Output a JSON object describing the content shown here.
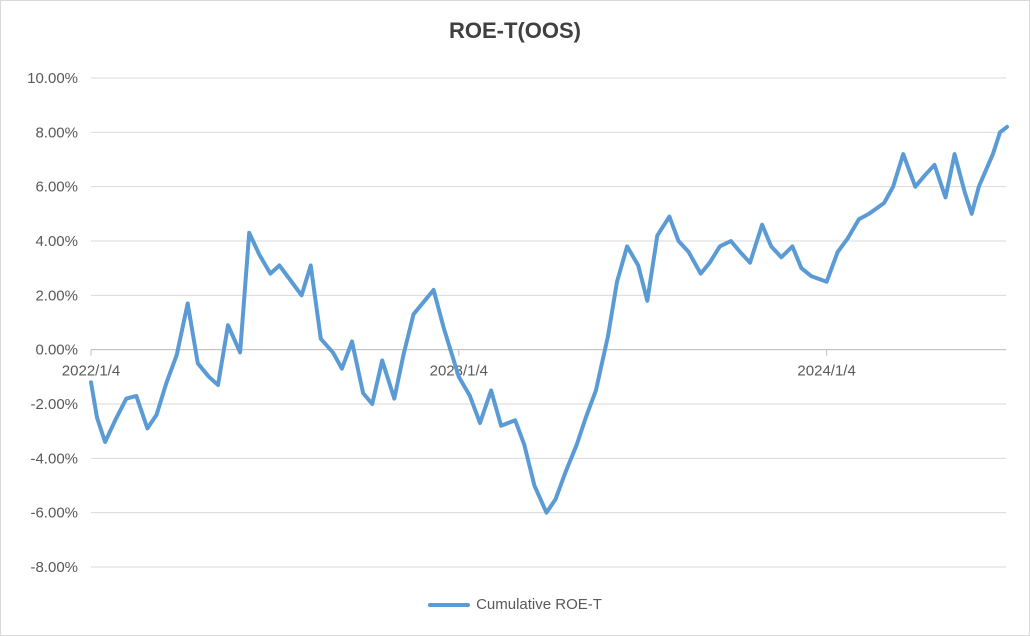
{
  "chart_data": {
    "type": "line",
    "title": "ROE-T(OOS)",
    "xlabel": "",
    "ylabel": "",
    "ylim": [
      -0.08,
      0.1
    ],
    "y_ticks": [
      "-8.00%",
      "-6.00%",
      "-4.00%",
      "-2.00%",
      "0.00%",
      "2.00%",
      "4.00%",
      "6.00%",
      "8.00%",
      "10.00%"
    ],
    "x_ticks": [
      "2022/1/4",
      "2023/1/4",
      "2024/1/4"
    ],
    "x": [
      "2022-01-04",
      "2022-01-10",
      "2022-01-18",
      "2022-01-28",
      "2022-02-08",
      "2022-02-18",
      "2022-03-01",
      "2022-03-10",
      "2022-03-20",
      "2022-03-30",
      "2022-04-10",
      "2022-04-20",
      "2022-05-01",
      "2022-05-10",
      "2022-05-20",
      "2022-06-01",
      "2022-06-10",
      "2022-06-20",
      "2022-07-01",
      "2022-07-10",
      "2022-07-20",
      "2022-08-01",
      "2022-08-10",
      "2022-08-20",
      "2022-09-01",
      "2022-09-10",
      "2022-09-20",
      "2022-10-01",
      "2022-10-10",
      "2022-10-20",
      "2022-11-01",
      "2022-11-10",
      "2022-11-20",
      "2022-12-01",
      "2022-12-10",
      "2022-12-20",
      "2023-01-04",
      "2023-01-15",
      "2023-01-25",
      "2023-02-05",
      "2023-02-15",
      "2023-03-01",
      "2023-03-10",
      "2023-03-20",
      "2023-04-01",
      "2023-04-10",
      "2023-04-20",
      "2023-05-01",
      "2023-05-10",
      "2023-05-20",
      "2023-06-01",
      "2023-06-10",
      "2023-06-20",
      "2023-07-01",
      "2023-07-10",
      "2023-07-20",
      "2023-08-01",
      "2023-08-10",
      "2023-08-20",
      "2023-09-01",
      "2023-09-10",
      "2023-09-20",
      "2023-10-01",
      "2023-10-10",
      "2023-10-20",
      "2023-11-01",
      "2023-11-10",
      "2023-11-20",
      "2023-12-01",
      "2023-12-10",
      "2023-12-20",
      "2024-01-04",
      "2024-01-15",
      "2024-01-25",
      "2024-02-05",
      "2024-02-15",
      "2024-03-01",
      "2024-03-10",
      "2024-03-20",
      "2024-04-01",
      "2024-04-10",
      "2024-04-20",
      "2024-05-01",
      "2024-05-10",
      "2024-05-20",
      "2024-05-27",
      "2024-06-03",
      "2024-06-10",
      "2024-06-17",
      "2024-06-24",
      "2024-07-01"
    ],
    "series": [
      {
        "name": "Cumulative ROE-T",
        "color": "#5b9bd5",
        "values": [
          -0.012,
          -0.025,
          -0.034,
          -0.026,
          -0.018,
          -0.017,
          -0.029,
          -0.024,
          -0.012,
          -0.002,
          0.017,
          -0.005,
          -0.01,
          -0.013,
          0.009,
          -0.001,
          0.043,
          0.035,
          0.028,
          0.031,
          0.026,
          0.02,
          0.031,
          0.004,
          -0.001,
          -0.007,
          0.003,
          -0.016,
          -0.02,
          -0.004,
          -0.018,
          -0.002,
          0.013,
          0.018,
          0.022,
          0.008,
          -0.01,
          -0.017,
          -0.027,
          -0.015,
          -0.028,
          -0.026,
          -0.035,
          -0.05,
          -0.06,
          -0.055,
          -0.045,
          -0.035,
          -0.025,
          -0.015,
          0.005,
          0.025,
          0.038,
          0.031,
          0.018,
          0.042,
          0.049,
          0.04,
          0.036,
          0.028,
          0.032,
          0.038,
          0.04,
          0.036,
          0.032,
          0.046,
          0.038,
          0.034,
          0.038,
          0.03,
          0.027,
          0.025,
          0.036,
          0.041,
          0.048,
          0.05,
          0.054,
          0.06,
          0.072,
          0.06,
          0.064,
          0.068,
          0.056,
          0.072,
          0.058,
          0.05,
          0.06,
          0.066,
          0.072,
          0.08,
          0.082
        ]
      }
    ]
  },
  "legend": {
    "label": "Cumulative ROE-T",
    "color": "#5b9bd5"
  }
}
